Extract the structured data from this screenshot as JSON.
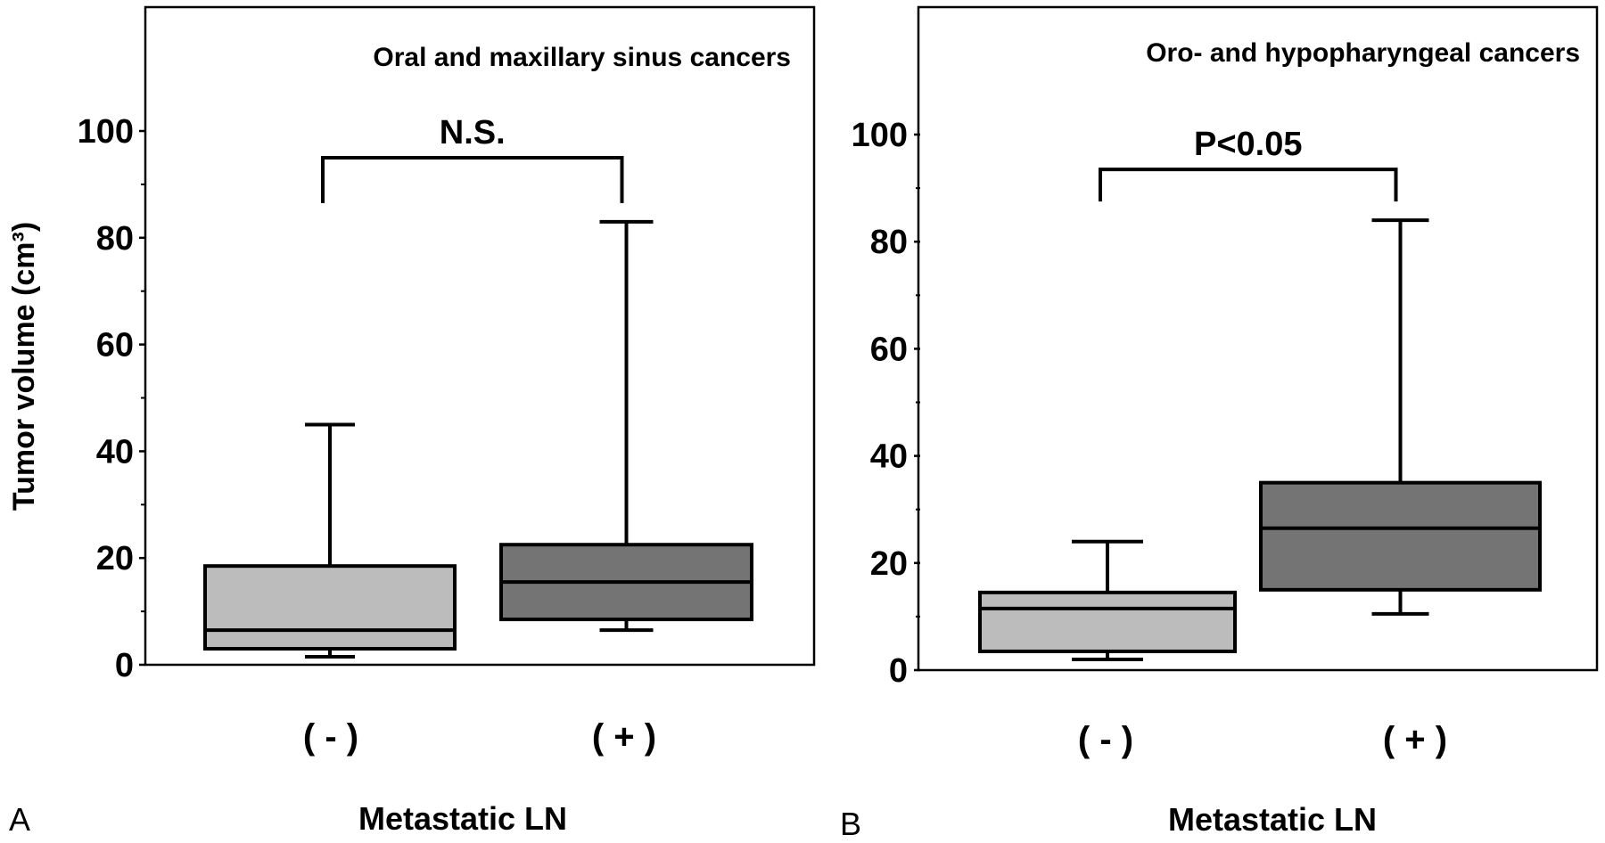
{
  "y_axis_label": "Tumor volume (cm³)",
  "colors": {
    "negative_box": "#bcbcbc",
    "positive_box": "#747474",
    "stroke": "#000000"
  },
  "chart_data": [
    {
      "type": "box",
      "panel_label": "A",
      "title": "Oral and maxillary sinus cancers",
      "xlabel": "Metastatic LN",
      "ylabel": "Tumor volume (cm³)",
      "ylim": [
        0,
        120
      ],
      "yticks": [
        "0",
        "20",
        "40",
        "60",
        "80",
        "100"
      ],
      "categories": [
        "( - )",
        "( + )"
      ],
      "boxes": [
        {
          "category": "( - )",
          "min": 1.5,
          "q1": 3,
          "median": 6.5,
          "q3": 18.5,
          "max": 45
        },
        {
          "category": "( + )",
          "min": 6.5,
          "q1": 8.5,
          "median": 15.5,
          "q3": 22.5,
          "max": 83
        }
      ],
      "significance": {
        "label": "N.S.",
        "bracket_y": 95,
        "drop_to": 86.5
      }
    },
    {
      "type": "box",
      "panel_label": "B",
      "title": "Oro- and hypopharyngeal cancers",
      "xlabel": "Metastatic LN",
      "ylabel": "",
      "ylim": [
        0,
        120
      ],
      "yticks": [
        "0",
        "20",
        "40",
        "60",
        "80",
        "100"
      ],
      "categories": [
        "( - )",
        "( + )"
      ],
      "boxes": [
        {
          "category": "( - )",
          "min": 2,
          "q1": 3.5,
          "median": 11.5,
          "q3": 14.5,
          "max": 24
        },
        {
          "category": "( + )",
          "min": 10.5,
          "q1": 15,
          "median": 26.5,
          "q3": 35,
          "max": 84
        }
      ],
      "significance": {
        "label": "P<0.05",
        "bracket_y": 93.5,
        "drop_to": 87.5
      }
    }
  ]
}
